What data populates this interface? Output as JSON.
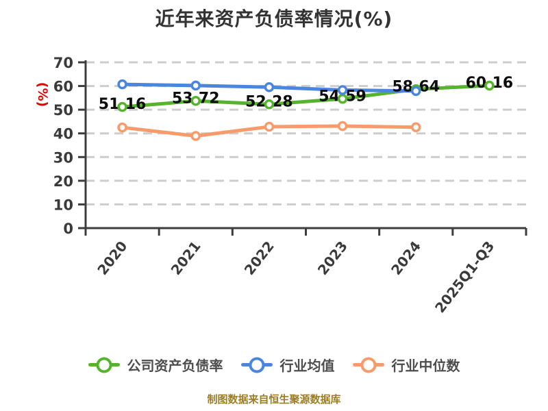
{
  "footer": {
    "note": "制图数据来自恒生聚源数据库",
    "note_color": "#9c7d26"
  },
  "chart_data": {
    "type": "line",
    "title": "近年来资产负债率情况(%)",
    "title_color": "#333333",
    "ylabel": "(%)",
    "ylabel_color": "#e60000",
    "xlabel": "",
    "categories": [
      "2020",
      "2021",
      "2022",
      "2023",
      "2024",
      "2025Q1-Q3"
    ],
    "y_ticks": [
      0,
      10,
      20,
      30,
      40,
      50,
      60,
      70
    ],
    "ylim": [
      0,
      70
    ],
    "grid": "horizontal-dashed",
    "grid_color": "#cdcdcd",
    "axis_color": "#3d3d3d",
    "legend_position": "bottom",
    "series": [
      {
        "name": "公司资产负债率",
        "color": "#55b32d",
        "values": [
          51.16,
          53.72,
          52.28,
          54.59,
          58.64,
          60.16
        ],
        "labels_shown": true
      },
      {
        "name": "行业均值",
        "color": "#4a86dd",
        "values": [
          60.7,
          60.2,
          59.5,
          58.3,
          57.9,
          null
        ],
        "labels_shown": false
      },
      {
        "name": "行业中位数",
        "color": "#f89b6b",
        "values": [
          42.5,
          38.9,
          42.8,
          43.1,
          42.6,
          null
        ],
        "labels_shown": false
      }
    ]
  }
}
